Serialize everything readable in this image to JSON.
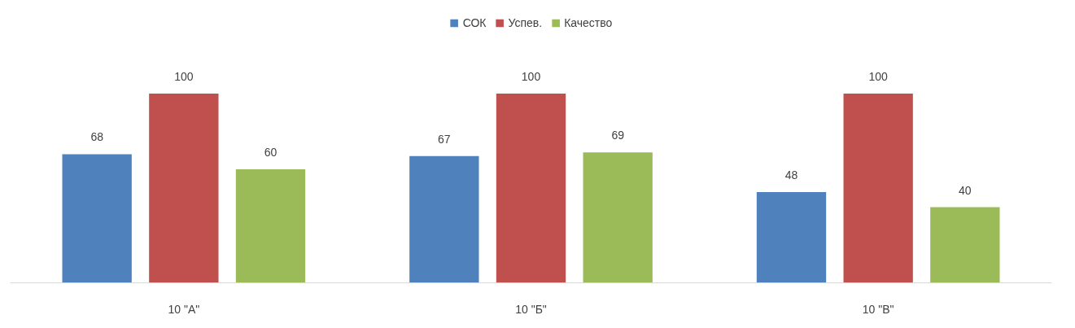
{
  "chart_data": {
    "type": "bar",
    "categories": [
      "10 \"А\"",
      "10 \"Б\"",
      "10 \"В\""
    ],
    "series": [
      {
        "name": "СОК",
        "color": "#4f81bd",
        "values": [
          68,
          67,
          48
        ]
      },
      {
        "name": "Успев.",
        "color": "#c0504d",
        "values": [
          100,
          100,
          100
        ]
      },
      {
        "name": "Качество",
        "color": "#9bbb59",
        "values": [
          60,
          69,
          40
        ]
      }
    ],
    "data_labels": true,
    "legend": "top",
    "grid": false,
    "tick_labels": "x"
  }
}
